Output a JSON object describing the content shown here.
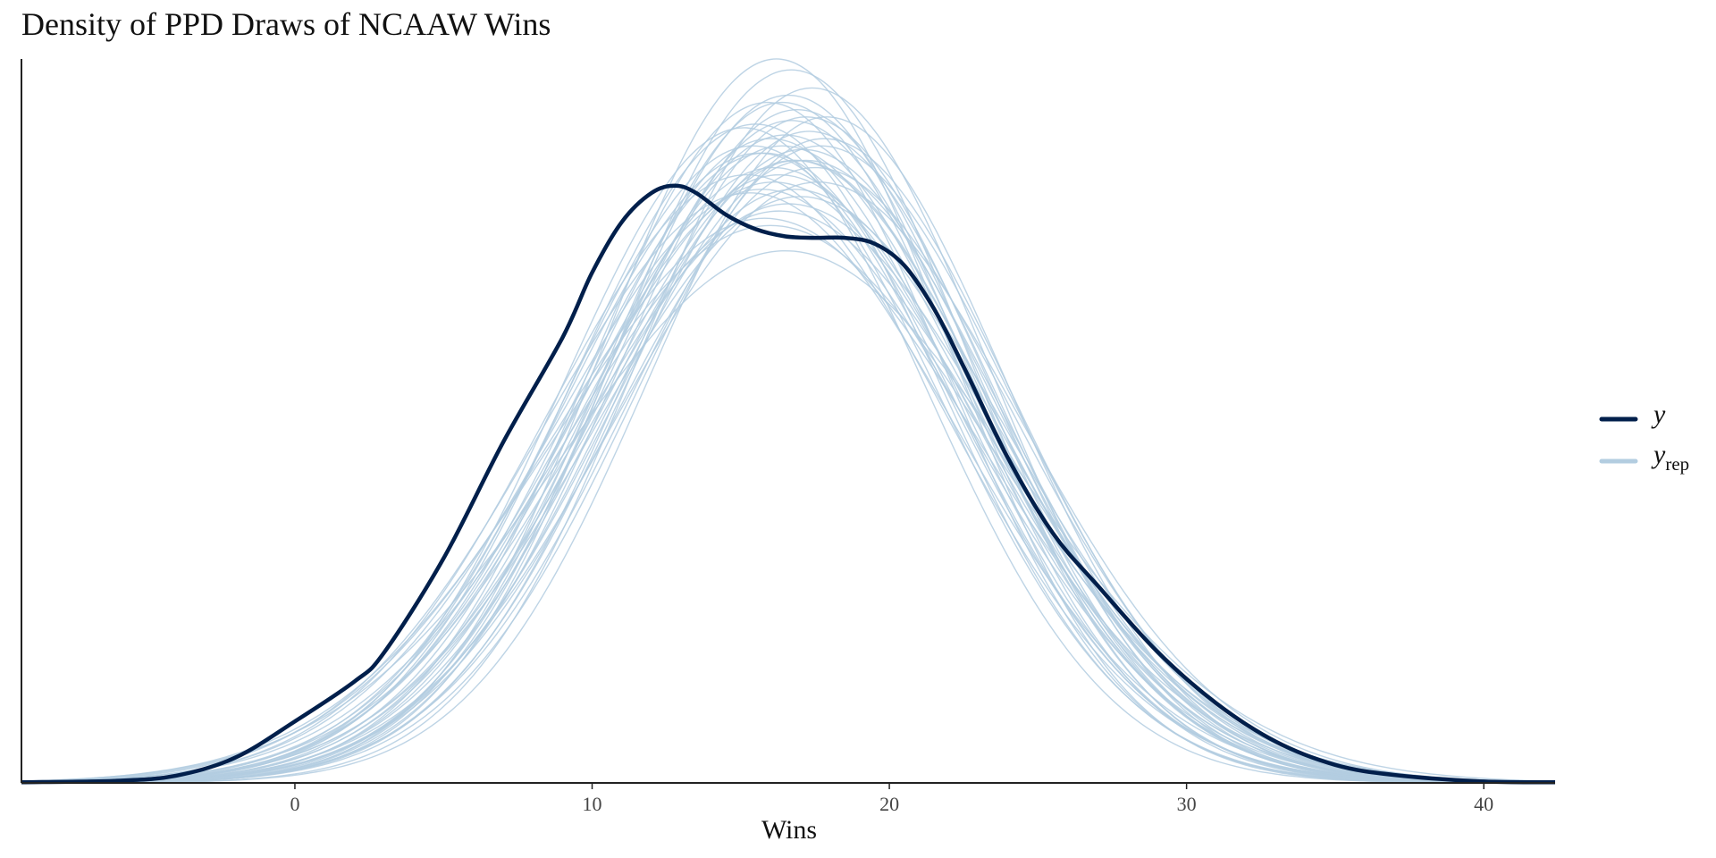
{
  "chart_data": {
    "type": "area",
    "title": "Density of PPD Draws of NCAAW Wins",
    "xlabel": "Wins",
    "ylabel": "",
    "xlim": [
      -9.2,
      42.4
    ],
    "ylim": [
      0,
      0.1
    ],
    "x_ticks": [
      0,
      10,
      20,
      30,
      40
    ],
    "x_tick_labels": [
      "0",
      "10",
      "20",
      "30",
      "40"
    ],
    "grid": false,
    "legend_position": "right",
    "colors": {
      "y": "#011f4b",
      "y_rep": "#b3cde0"
    },
    "series": [
      {
        "name": "y",
        "x": [
          -9.2,
          -6,
          -4,
          -2,
          0,
          2,
          3,
          5,
          7,
          9,
          10,
          11,
          12,
          12.8,
          13.5,
          14.5,
          15.5,
          16.5,
          17.5,
          18.5,
          19.5,
          20.5,
          21.5,
          22.5,
          24,
          25.5,
          27,
          29,
          31,
          33,
          35,
          37,
          40,
          42.4
        ],
        "y": [
          0.0001,
          0.0003,
          0.001,
          0.0035,
          0.0085,
          0.014,
          0.018,
          0.031,
          0.047,
          0.0615,
          0.0705,
          0.0775,
          0.0815,
          0.0825,
          0.0815,
          0.0785,
          0.0765,
          0.0755,
          0.0753,
          0.0753,
          0.0745,
          0.0715,
          0.0655,
          0.0575,
          0.0448,
          0.0345,
          0.0273,
          0.0182,
          0.011,
          0.0057,
          0.0025,
          0.0011,
          0.0002,
          0.0001
        ]
      },
      {
        "name": "y_rep",
        "draws": [
          {
            "mu": 16.5,
            "sd": 6.3,
            "peak": 0.0895
          },
          {
            "mu": 15.8,
            "sd": 6.4,
            "peak": 0.087
          },
          {
            "mu": 17.2,
            "sd": 6.1,
            "peak": 0.092
          },
          {
            "mu": 16.1,
            "sd": 6.8,
            "peak": 0.083
          },
          {
            "mu": 16.9,
            "sd": 6.5,
            "peak": 0.086
          },
          {
            "mu": 15.5,
            "sd": 6.2,
            "peak": 0.091
          },
          {
            "mu": 17.5,
            "sd": 6.6,
            "peak": 0.085
          },
          {
            "mu": 16.3,
            "sd": 7.1,
            "peak": 0.079
          },
          {
            "mu": 16.7,
            "sd": 5.9,
            "peak": 0.0985
          },
          {
            "mu": 15.9,
            "sd": 6.0,
            "peak": 0.094
          },
          {
            "mu": 17.0,
            "sd": 6.9,
            "peak": 0.081
          },
          {
            "mu": 16.4,
            "sd": 6.4,
            "peak": 0.088
          },
          {
            "mu": 15.2,
            "sd": 6.7,
            "peak": 0.084
          },
          {
            "mu": 17.8,
            "sd": 6.3,
            "peak": 0.089
          },
          {
            "mu": 16.0,
            "sd": 7.4,
            "peak": 0.077
          },
          {
            "mu": 16.6,
            "sd": 6.0,
            "peak": 0.095
          },
          {
            "mu": 17.3,
            "sd": 6.2,
            "peak": 0.09
          },
          {
            "mu": 15.7,
            "sd": 6.9,
            "peak": 0.082
          },
          {
            "mu": 16.8,
            "sd": 6.6,
            "peak": 0.086
          },
          {
            "mu": 16.2,
            "sd": 5.8,
            "peak": 0.1
          },
          {
            "mu": 15.4,
            "sd": 6.3,
            "peak": 0.088
          },
          {
            "mu": 17.6,
            "sd": 6.8,
            "peak": 0.083
          },
          {
            "mu": 16.5,
            "sd": 7.6,
            "peak": 0.0735
          },
          {
            "mu": 16.9,
            "sd": 6.1,
            "peak": 0.093
          },
          {
            "mu": 15.6,
            "sd": 6.5,
            "peak": 0.087
          },
          {
            "mu": 17.1,
            "sd": 6.4,
            "peak": 0.0875
          },
          {
            "mu": 16.3,
            "sd": 6.7,
            "peak": 0.084
          },
          {
            "mu": 17.9,
            "sd": 6.0,
            "peak": 0.092
          },
          {
            "mu": 15.1,
            "sd": 6.1,
            "peak": 0.0905
          },
          {
            "mu": 16.6,
            "sd": 7.0,
            "peak": 0.08
          },
          {
            "mu": 16.0,
            "sd": 6.3,
            "peak": 0.089
          },
          {
            "mu": 17.4,
            "sd": 5.9,
            "peak": 0.096
          },
          {
            "mu": 16.8,
            "sd": 6.8,
            "peak": 0.082
          },
          {
            "mu": 15.8,
            "sd": 7.2,
            "peak": 0.078
          },
          {
            "mu": 17.2,
            "sd": 6.5,
            "peak": 0.086
          },
          {
            "mu": 16.4,
            "sd": 6.0,
            "peak": 0.094
          },
          {
            "mu": 16.1,
            "sd": 6.6,
            "peak": 0.085
          },
          {
            "mu": 17.7,
            "sd": 6.4,
            "peak": 0.088
          },
          {
            "mu": 15.3,
            "sd": 6.9,
            "peak": 0.0815
          },
          {
            "mu": 16.7,
            "sd": 6.2,
            "peak": 0.0915
          }
        ]
      }
    ]
  },
  "legend": {
    "items": [
      {
        "symbol": "y",
        "subscript": "",
        "color": "#011f4b"
      },
      {
        "symbol": "y",
        "subscript": "rep",
        "color": "#b3cde0"
      }
    ]
  }
}
